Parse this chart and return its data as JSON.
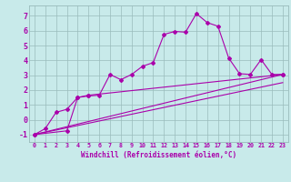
{
  "xlabel": "Windchill (Refroidissement éolien,°C)",
  "bg_color": "#c8eaea",
  "line_color": "#aa00aa",
  "grid_color": "#99bbbb",
  "series1_x": [
    0,
    1,
    2,
    3,
    4,
    5,
    6,
    7,
    8,
    9,
    10,
    11,
    12,
    13,
    14,
    15,
    16,
    17,
    18,
    19,
    20,
    21,
    22,
    23
  ],
  "series1_y": [
    -1.0,
    -0.6,
    0.5,
    0.7,
    1.5,
    1.6,
    1.65,
    3.05,
    2.7,
    3.05,
    3.6,
    3.85,
    5.75,
    5.95,
    5.9,
    7.15,
    6.55,
    6.3,
    4.15,
    3.1,
    3.05,
    4.05,
    3.05,
    3.05
  ],
  "series2_x": [
    0,
    3,
    4,
    5,
    23
  ],
  "series2_y": [
    -1.0,
    -0.75,
    1.5,
    1.65,
    3.05
  ],
  "series3_x": [
    0,
    23
  ],
  "series3_y": [
    -1.0,
    3.05
  ],
  "series4_x": [
    0,
    23
  ],
  "series4_y": [
    -1.0,
    2.5
  ],
  "xlim": [
    -0.5,
    23.5
  ],
  "ylim": [
    -1.5,
    7.7
  ],
  "yticks": [
    -1,
    0,
    1,
    2,
    3,
    4,
    5,
    6,
    7
  ],
  "xticks": [
    0,
    1,
    2,
    3,
    4,
    5,
    6,
    7,
    8,
    9,
    10,
    11,
    12,
    13,
    14,
    15,
    16,
    17,
    18,
    19,
    20,
    21,
    22,
    23
  ]
}
